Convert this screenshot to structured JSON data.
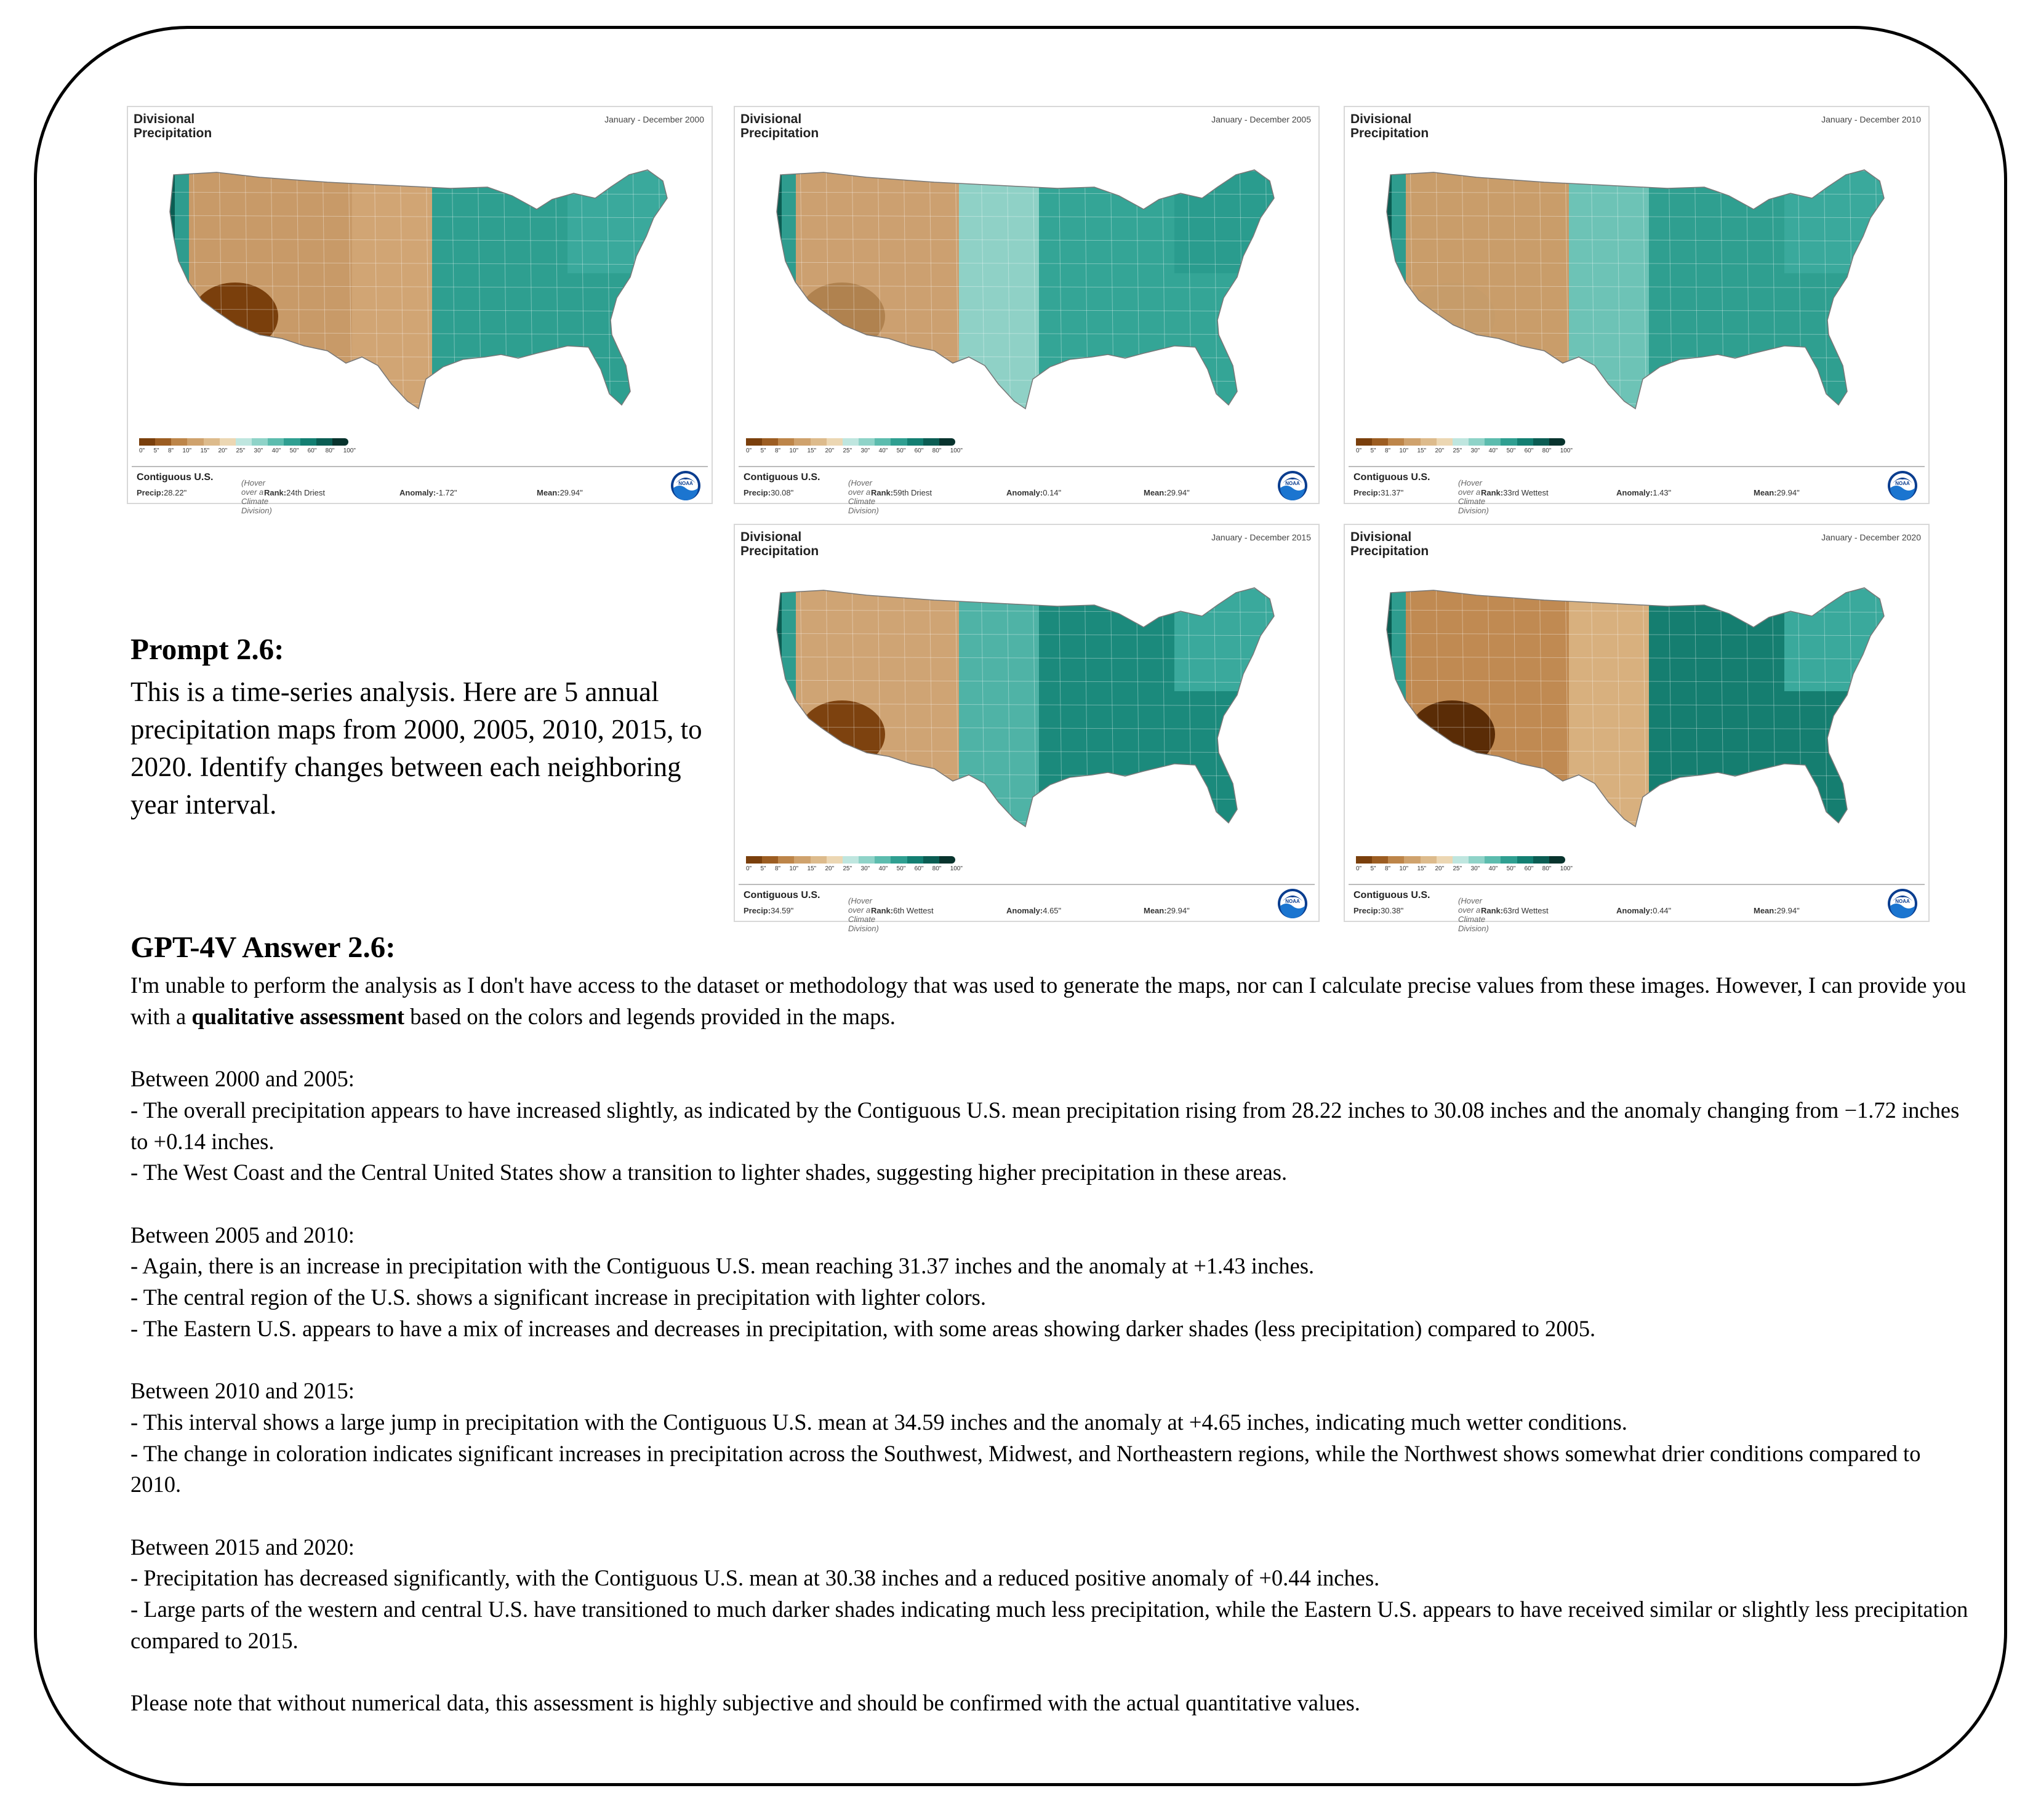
{
  "maps": [
    {
      "title_line1": "Divisional",
      "title_line2": "Precipitation",
      "period": "January - December 2000",
      "region": "Contiguous U.S.",
      "hover_hint": "(Hover over a Climate Division)",
      "precip_label": "Precip:",
      "precip": "28.22\"",
      "rank_label": "Rank:",
      "rank": "24th Driest",
      "anomaly_label": "Anomaly:",
      "anomaly": "-1.72\"",
      "mean_label": "Mean:",
      "mean": "29.94\"",
      "west": "#c89a68",
      "southwest": "#7a3f0c",
      "plains": "#d1a574",
      "east": "#2e9f90",
      "northeast": "#3aa99c"
    },
    {
      "title_line1": "Divisional",
      "title_line2": "Precipitation",
      "period": "January - December 2005",
      "region": "Contiguous U.S.",
      "hover_hint": "(Hover over a Climate Division)",
      "precip_label": "Precip:",
      "precip": "30.08\"",
      "rank_label": "Rank:",
      "rank": "59th Driest",
      "anomaly_label": "Anomaly:",
      "anomaly": "0.14\"",
      "mean_label": "Mean:",
      "mean": "29.94\"",
      "west": "#cca070",
      "southwest": "#b0824f",
      "plains": "#8fd1c6",
      "east": "#34a596",
      "northeast": "#2a9c8e"
    },
    {
      "title_line1": "Divisional",
      "title_line2": "Precipitation",
      "period": "January - December 2010",
      "region": "Contiguous U.S.",
      "hover_hint": "(Hover over a Climate Division)",
      "precip_label": "Precip:",
      "precip": "31.37\"",
      "rank_label": "Rank:",
      "rank": "33rd Wettest",
      "anomaly_label": "Anomaly:",
      "anomaly": "1.43\"",
      "mean_label": "Mean:",
      "mean": "29.94\"",
      "west": "#c99d6a",
      "southwest": "#c69c6a",
      "plains": "#6dc3b6",
      "east": "#2f9f90",
      "northeast": "#3aa99c"
    },
    {
      "title_line1": "Divisional",
      "title_line2": "Precipitation",
      "period": "January - December 2015",
      "region": "Contiguous U.S.",
      "hover_hint": "(Hover over a Climate Division)",
      "precip_label": "Precip:",
      "precip": "34.59\"",
      "rank_label": "Rank:",
      "rank": "6th Wettest",
      "anomaly_label": "Anomaly:",
      "anomaly": "4.65\"",
      "mean_label": "Mean:",
      "mean": "29.94\"",
      "west": "#cfa474",
      "southwest": "#7d420f",
      "plains": "#4fb3a6",
      "east": "#1b8a7c",
      "northeast": "#3aa99c"
    },
    {
      "title_line1": "Divisional",
      "title_line2": "Precipitation",
      "period": "January - December 2020",
      "region": "Contiguous U.S.",
      "hover_hint": "(Hover over a Climate Division)",
      "precip_label": "Precip:",
      "precip": "30.38\"",
      "rank_label": "Rank:",
      "rank": "63rd Wettest",
      "anomaly_label": "Anomaly:",
      "anomaly": "0.44\"",
      "mean_label": "Mean:",
      "mean": "29.94\"",
      "west": "#c08a52",
      "southwest": "#5a2c06",
      "plains": "#d8b07e",
      "east": "#157e70",
      "northeast": "#3aa99c"
    }
  ],
  "legend": {
    "ticks": [
      "0\"",
      "5\"",
      "8\"",
      "10\"",
      "15\"",
      "20\"",
      "25\"",
      "30\"",
      "40\"",
      "50\"",
      "60\"",
      "80\"",
      "100\""
    ],
    "colors": [
      "#7a3f0c",
      "#9c5d22",
      "#bd8549",
      "#cfa26d",
      "#ddbb8c",
      "#ecd7b3",
      "#bfe6df",
      "#8fd3c8",
      "#5cbcae",
      "#2f9f91",
      "#137f72",
      "#0b5d53",
      "#08332d"
    ]
  },
  "noaa_text": "NOAA",
  "prompt": {
    "heading": "Prompt 2.6:",
    "text": "This is a time-series analysis. Here are 5 annual precipitation maps from 2000, 2005, 2010, 2015, to 2020. Identify changes between each neighboring year interval."
  },
  "answer": {
    "heading": "GPT-4V Answer 2.6:",
    "intro_1": "I'm unable to perform the analysis as I don't have access to the dataset or methodology that was used to generate the maps, nor can I calculate precise values from these images. However, I can provide you with a ",
    "intro_bold": "qualitative assessment",
    "intro_2": " based on the colors and legends provided in the maps.",
    "s1_h": "Between 2000 and 2005:",
    "s1_a": "- The overall precipitation appears to have increased slightly, as indicated by the Contiguous U.S. mean precipitation rising from 28.22 inches to 30.08 inches and the anomaly changing from −1.72 inches to +0.14 inches.",
    "s1_b": "- The West Coast and the Central United States show a transition to lighter shades, suggesting higher precipitation in these areas.",
    "s2_h": "Between 2005 and 2010:",
    "s2_a": "- Again, there is an increase in precipitation with the Contiguous U.S. mean reaching 31.37 inches and the anomaly at +1.43 inches.",
    "s2_b": "- The central region of the U.S. shows a significant increase in precipitation with lighter colors.",
    "s2_c": "- The Eastern U.S. appears to have a mix of increases and decreases in precipitation, with some areas showing darker shades (less precipitation) compared to 2005.",
    "s3_h": "Between 2010 and 2015:",
    "s3_a": "- This interval shows a large jump in precipitation with the Contiguous U.S. mean at 34.59 inches and the anomaly at +4.65 inches, indicating much wetter conditions.",
    "s3_b": "- The change in coloration indicates significant increases in precipitation across the Southwest, Midwest, and Northeastern regions, while the Northwest shows somewhat drier conditions compared to 2010.",
    "s4_h": "Between 2015 and 2020:",
    "s4_a": "- Precipitation has decreased significantly, with the Contiguous U.S. mean at 30.38 inches and a reduced positive anomaly of +0.44 inches.",
    "s4_b": "- Large parts of the western and central U.S. have transitioned to much darker shades indicating much less precipitation, while the Eastern U.S. appears to have received similar or slightly less precipitation compared to 2015.",
    "note": "Please note that without numerical data, this assessment is highly subjective and should be confirmed with the actual quantitative values."
  }
}
